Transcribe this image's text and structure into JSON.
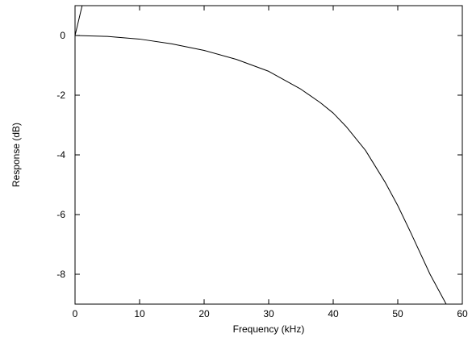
{
  "chart_data": {
    "type": "line",
    "title": "",
    "xlabel": "Frequency (kHz)",
    "ylabel": "Response (dB)",
    "xlim": [
      0,
      60
    ],
    "ylim": [
      -9,
      1
    ],
    "x_ticks": [
      0,
      10,
      20,
      30,
      40,
      50,
      60
    ],
    "y_ticks": [
      0,
      -2,
      -4,
      -6,
      -8
    ],
    "x_tick_labels": [
      "0",
      "10",
      "20",
      "30",
      "40",
      "50",
      "60"
    ],
    "y_tick_labels": [
      "0",
      "-2",
      "-4",
      "-6",
      "-8"
    ],
    "grid": false,
    "legend": "none",
    "colors": {
      "line": "#000000",
      "axes": "#000000",
      "background": "#ffffff"
    },
    "series": [
      {
        "x": [
          0,
          5,
          10,
          15,
          20,
          25,
          30,
          35,
          38,
          40,
          42,
          45,
          48,
          50,
          52,
          55,
          57.5
        ],
        "y": [
          0,
          -0.03,
          -0.12,
          -0.28,
          -0.5,
          -0.8,
          -1.2,
          -1.8,
          -2.25,
          -2.6,
          -3.05,
          -3.85,
          -4.9,
          -5.7,
          -6.6,
          -8.0,
          -9.0
        ]
      },
      {
        "x": [
          0,
          1.1
        ],
        "y": [
          0,
          1.0
        ]
      }
    ]
  }
}
